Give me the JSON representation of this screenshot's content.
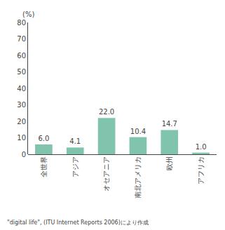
{
  "chart_data": {
    "type": "bar",
    "categories": [
      "全世界",
      "アジア",
      "オセアニア",
      "南北アメリカ",
      "欧州",
      "アフリカ"
    ],
    "values": [
      6.0,
      4.1,
      22.0,
      10.4,
      14.7,
      1.0
    ],
    "value_labels": [
      "6.0",
      "4.1",
      "22.0",
      "10.4",
      "14.7",
      "1.0"
    ],
    "data_labels": true,
    "color": "#80c4ad",
    "ylabel": "(%)",
    "annotations": [
      "\"digital life\", (ITU Internet Reports 2006)により作成"
    ],
    "ylim": [
      0,
      80
    ],
    "yticks": [
      0,
      10,
      20,
      30,
      40,
      50,
      60,
      70,
      80
    ],
    "grid": false
  }
}
